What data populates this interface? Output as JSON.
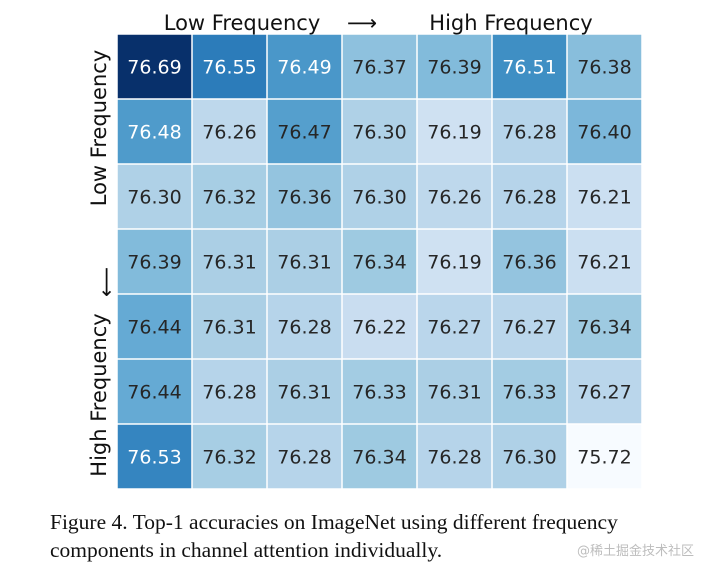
{
  "chart_data": {
    "type": "heatmap",
    "x_axis_label_left": "Low Frequency",
    "x_axis_arrow": "⟶",
    "x_axis_label_right": "High Frequency",
    "y_axis_label_top": "Low Frequency",
    "y_axis_arrow": "⟶",
    "y_axis_label_bottom": "High Frequency",
    "colormap": "Blues",
    "vmin": 75.72,
    "vmax": 76.69,
    "values": [
      [
        76.69,
        76.55,
        76.49,
        76.37,
        76.39,
        76.51,
        76.38
      ],
      [
        76.48,
        76.26,
        76.47,
        76.3,
        76.19,
        76.28,
        76.4
      ],
      [
        76.3,
        76.32,
        76.36,
        76.3,
        76.26,
        76.28,
        76.21
      ],
      [
        76.39,
        76.31,
        76.31,
        76.34,
        76.19,
        76.36,
        76.21
      ],
      [
        76.44,
        76.31,
        76.28,
        76.22,
        76.27,
        76.27,
        76.34
      ],
      [
        76.44,
        76.28,
        76.31,
        76.33,
        76.31,
        76.33,
        76.27
      ],
      [
        76.53,
        76.32,
        76.28,
        76.34,
        76.28,
        76.3,
        75.72
      ]
    ]
  },
  "caption": "Figure 4. Top-1 accuracies on ImageNet using different frequency components in channel attention individually.",
  "watermark": "@稀土掘金技术社区",
  "colors": {
    "dark": "#08306b",
    "mid_dark": "#0b559f",
    "mid": "#2171b5",
    "light": "#c6dbef",
    "lightest": "#f7fbff"
  }
}
